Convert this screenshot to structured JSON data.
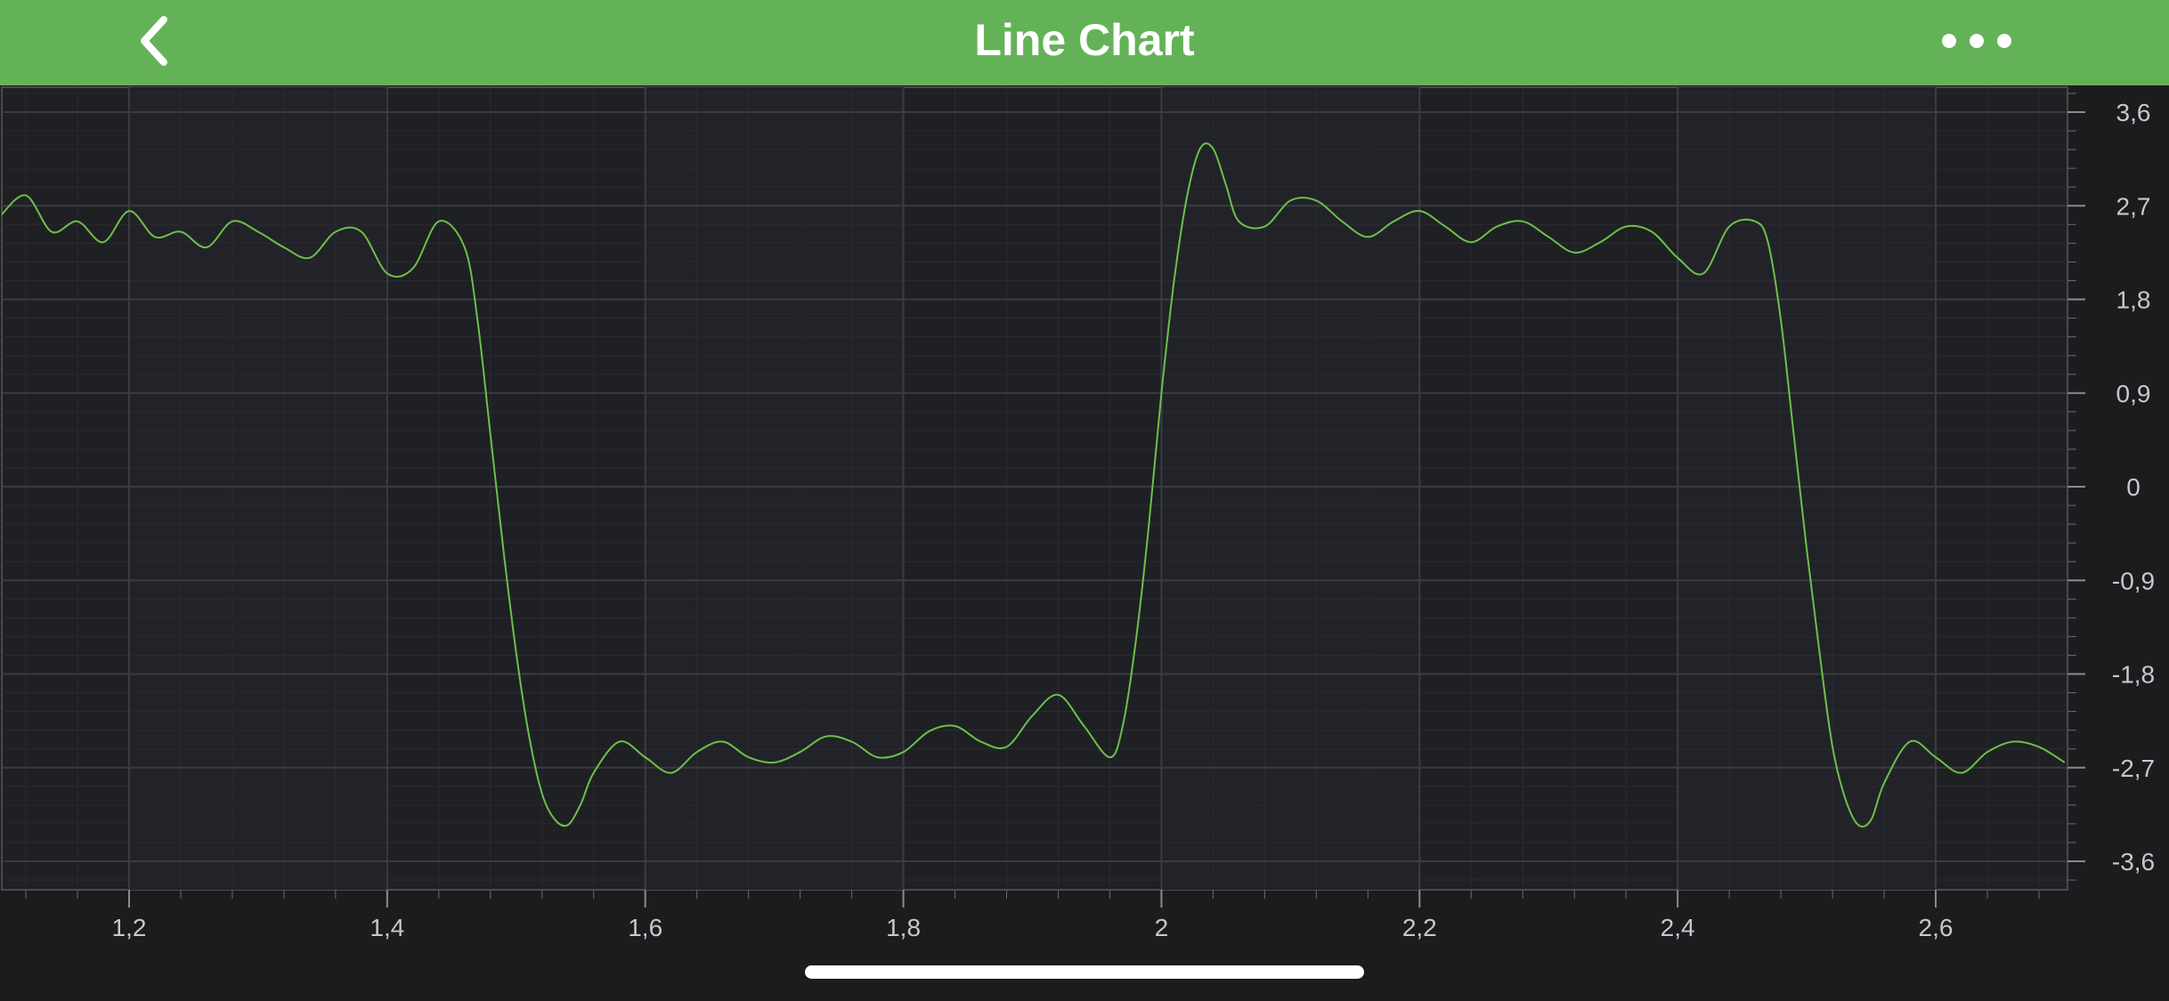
{
  "navbar": {
    "title": "Line Chart",
    "back_icon": "chevron-left-icon",
    "more_icon": "ellipsis-icon",
    "background": "#64b258"
  },
  "chart_data": {
    "type": "line",
    "title": "",
    "xlabel": "",
    "ylabel": "",
    "xlim": [
      1.1,
      2.7
    ],
    "ylim": [
      -3.9,
      3.8
    ],
    "grid": true,
    "x_ticks": [
      "1,2",
      "1,4",
      "1,6",
      "1,8",
      "2",
      "2,2",
      "2,4",
      "2,6"
    ],
    "x_tick_values": [
      1.2,
      1.4,
      1.6,
      1.8,
      2.0,
      2.2,
      2.4,
      2.6
    ],
    "y_ticks": [
      "3,6",
      "2,7",
      "1,8",
      "0,9",
      "0",
      "-0,9",
      "-1,8",
      "-2,7",
      "-3,6"
    ],
    "y_tick_values": [
      3.6,
      2.7,
      1.8,
      0.9,
      0,
      -0.9,
      -1.8,
      -2.7,
      -3.6
    ],
    "series": [
      {
        "color": "#6cc04a",
        "description_of_shape": "square wave approximation (Fourier series) with ripple",
        "x": [
          1.1,
          1.12,
          1.14,
          1.16,
          1.18,
          1.2,
          1.22,
          1.24,
          1.26,
          1.28,
          1.3,
          1.32,
          1.34,
          1.36,
          1.38,
          1.4,
          1.42,
          1.44,
          1.46,
          1.47,
          1.48,
          1.49,
          1.5,
          1.51,
          1.52,
          1.53,
          1.54,
          1.55,
          1.56,
          1.58,
          1.6,
          1.62,
          1.64,
          1.66,
          1.68,
          1.7,
          1.72,
          1.74,
          1.76,
          1.78,
          1.8,
          1.82,
          1.84,
          1.86,
          1.88,
          1.9,
          1.92,
          1.94,
          1.96,
          1.97,
          1.98,
          1.99,
          2.0,
          2.01,
          2.02,
          2.03,
          2.04,
          2.05,
          2.06,
          2.08,
          2.1,
          2.12,
          2.14,
          2.16,
          2.18,
          2.2,
          2.22,
          2.24,
          2.26,
          2.28,
          2.3,
          2.32,
          2.34,
          2.36,
          2.38,
          2.4,
          2.42,
          2.44,
          2.46,
          2.47,
          2.48,
          2.49,
          2.5,
          2.51,
          2.52,
          2.53,
          2.54,
          2.55,
          2.56,
          2.58,
          2.6,
          2.62,
          2.64,
          2.66,
          2.68,
          2.7
        ],
        "y": [
          2.6,
          2.8,
          2.45,
          2.55,
          2.35,
          2.65,
          2.4,
          2.45,
          2.3,
          2.55,
          2.45,
          2.3,
          2.2,
          2.45,
          2.45,
          2.05,
          2.1,
          2.55,
          2.3,
          1.6,
          0.5,
          -0.6,
          -1.6,
          -2.4,
          -2.95,
          -3.2,
          -3.25,
          -3.05,
          -2.75,
          -2.45,
          -2.6,
          -2.75,
          -2.55,
          -2.45,
          -2.6,
          -2.65,
          -2.55,
          -2.4,
          -2.45,
          -2.6,
          -2.55,
          -2.35,
          -2.3,
          -2.45,
          -2.5,
          -2.2,
          -2.0,
          -2.3,
          -2.6,
          -2.3,
          -1.5,
          -0.4,
          0.9,
          2.0,
          2.8,
          3.25,
          3.25,
          2.9,
          2.55,
          2.5,
          2.75,
          2.75,
          2.55,
          2.4,
          2.55,
          2.65,
          2.5,
          2.35,
          2.5,
          2.55,
          2.4,
          2.25,
          2.35,
          2.5,
          2.45,
          2.2,
          2.05,
          2.5,
          2.55,
          2.35,
          1.6,
          0.5,
          -0.6,
          -1.6,
          -2.5,
          -3.0,
          -3.25,
          -3.2,
          -2.85,
          -2.45,
          -2.6,
          -2.75,
          -2.55,
          -2.45,
          -2.5,
          -2.65
        ]
      }
    ]
  }
}
